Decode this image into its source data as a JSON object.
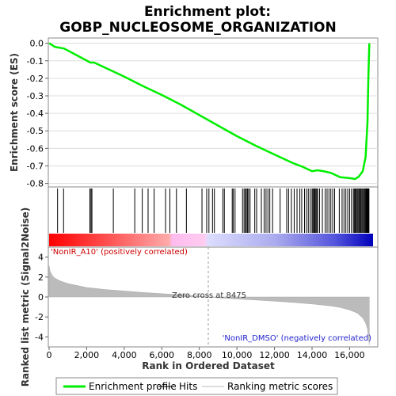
{
  "chart_data": {
    "type": "line",
    "title_line1": "Enrichment plot:",
    "title_line2": "GOBP_NUCLEOSOME_ORGANIZATION",
    "xlabel": "Rank in Ordered Dataset",
    "xlim": [
      0,
      17500
    ],
    "x_ticks": [
      0,
      2000,
      4000,
      6000,
      8000,
      10000,
      12000,
      14000,
      16000
    ],
    "x_tick_labels": [
      "0",
      "2,000",
      "4,000",
      "6,000",
      "8,000",
      "10,000",
      "12,000",
      "14,000",
      "16,000"
    ],
    "es_panel": {
      "ylabel": "Enrichment score (ES)",
      "ylim": [
        -0.82,
        0.03
      ],
      "y_ticks": [
        0.0,
        -0.1,
        -0.2,
        -0.3,
        -0.4,
        -0.5,
        -0.6,
        -0.7,
        -0.8
      ],
      "y_tick_labels": [
        "0.0",
        "-0.1",
        "-0.2",
        "-0.3",
        "-0.4",
        "-0.5",
        "-0.6",
        "-0.7",
        "-0.8"
      ],
      "series": [
        {
          "name": "Enrichment profile",
          "color": "#00ee00",
          "x": [
            0,
            300,
            800,
            1500,
            2200,
            2400,
            3000,
            4000,
            5000,
            6000,
            7000,
            8000,
            9000,
            10000,
            11000,
            12000,
            13000,
            13500,
            14000,
            14300,
            14600,
            15000,
            15500,
            16000,
            16300,
            16500,
            16700,
            16850,
            16950,
            17000,
            17050
          ],
          "y": [
            0.0,
            -0.02,
            -0.03,
            -0.07,
            -0.11,
            -0.11,
            -0.14,
            -0.19,
            -0.245,
            -0.295,
            -0.35,
            -0.41,
            -0.47,
            -0.53,
            -0.585,
            -0.635,
            -0.685,
            -0.705,
            -0.73,
            -0.725,
            -0.73,
            -0.74,
            -0.765,
            -0.77,
            -0.775,
            -0.76,
            -0.73,
            -0.65,
            -0.45,
            -0.2,
            0.0
          ]
        }
      ]
    },
    "hits": {
      "name": "Hits",
      "color": "#000000",
      "positions": [
        450,
        770,
        2170,
        2230,
        2280,
        3420,
        4560,
        4960,
        5270,
        5590,
        6200,
        6430,
        6780,
        7310,
        8140,
        8390,
        8510,
        8700,
        8800,
        9250,
        9330,
        9750,
        9800,
        9900,
        10300,
        10380,
        10450,
        10500,
        10560,
        10620,
        10700,
        10950,
        11050,
        11300,
        11450,
        11550,
        11650,
        11750,
        11900,
        12300,
        12650,
        12750,
        12900,
        13050,
        13200,
        13350,
        13450,
        13600,
        13700,
        13800,
        13900,
        14000,
        14050,
        14100,
        14150,
        14200,
        14250,
        14300,
        14400,
        14550,
        14700,
        14800,
        14900,
        15000,
        15100,
        15200,
        15450,
        15600,
        15700,
        15800,
        15900,
        16000,
        16100,
        16200,
        16250,
        16300,
        16350,
        16400,
        16450,
        16500,
        16550,
        16600,
        16650,
        16700,
        16750,
        16800,
        16850,
        16880,
        16910,
        16940,
        16970,
        17000,
        17030
      ]
    },
    "metric_panel": {
      "ylabel": "Ranked list metric (Signal2Noise)",
      "ylim": [
        -5,
        5
      ],
      "y_ticks": [
        4,
        2,
        0,
        -2,
        -4
      ],
      "y_tick_labels": [
        "4",
        "2",
        "0",
        "-2",
        "-4"
      ],
      "series": [
        {
          "name": "Ranking metric scores",
          "color": "#bbbbbb",
          "x": [
            0,
            50,
            150,
            300,
            600,
            1000,
            2000,
            3000,
            4000,
            5000,
            6000,
            7000,
            8000,
            8475,
            9000,
            10000,
            11000,
            12000,
            13000,
            14000,
            15000,
            15500,
            16000,
            16400,
            16700,
            16850,
            16950,
            17000,
            17050
          ],
          "y": [
            3.1,
            2.6,
            2.2,
            1.9,
            1.6,
            1.35,
            0.95,
            0.75,
            0.6,
            0.45,
            0.33,
            0.22,
            0.1,
            0.0,
            -0.08,
            -0.2,
            -0.3,
            -0.42,
            -0.55,
            -0.7,
            -0.9,
            -1.05,
            -1.3,
            -1.6,
            -2.1,
            -2.6,
            -3.2,
            -4.0,
            -4.8
          ]
        }
      ],
      "zero_cross_label": "Zero cross at 8475",
      "zero_cross": 8475,
      "pos_label": "'NonIR_A10' (positively correlated)",
      "neg_label": "'NonIR_DMSO' (negatively correlated)"
    },
    "legend": {
      "placement": "bottom",
      "items": [
        {
          "label": "Enrichment profile",
          "color": "#00ee00"
        },
        {
          "label": "Hits",
          "color": "#000000"
        },
        {
          "label": "Ranking metric scores",
          "color": "#bbbbbb"
        }
      ]
    }
  }
}
